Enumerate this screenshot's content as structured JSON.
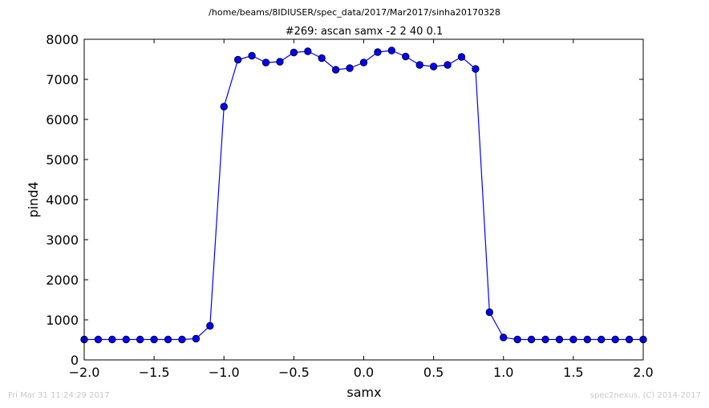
{
  "header": {
    "suptitle": "/home/beams/8IDIUSER/spec_data/2017/Mar2017/sinha20170328"
  },
  "footer": {
    "timestamp": "Fri Mar 31 11:24:29 2017",
    "credit": "spec2nexus, (C) 2014-2017"
  },
  "chart_data": {
    "type": "line",
    "title": "#269: ascan  samx -2 2  40 0.1",
    "xlabel": "samx",
    "ylabel": "pind4",
    "xlim": [
      -2.0,
      2.0
    ],
    "ylim": [
      0,
      8000
    ],
    "xticks": [
      "−2.0",
      "−1.5",
      "−1.0",
      "−0.5",
      "0.0",
      "0.5",
      "1.0",
      "1.5",
      "2.0"
    ],
    "yticks": [
      "0",
      "1000",
      "2000",
      "3000",
      "4000",
      "5000",
      "6000",
      "7000",
      "8000"
    ],
    "line_color": "#0000ff",
    "marker": "circle",
    "grid": false,
    "x": [
      -2.0,
      -1.9,
      -1.8,
      -1.7,
      -1.6,
      -1.5,
      -1.4,
      -1.3,
      -1.2,
      -1.1,
      -1.0,
      -0.9,
      -0.8,
      -0.7,
      -0.6,
      -0.5,
      -0.4,
      -0.3,
      -0.2,
      -0.1,
      0.0,
      0.1,
      0.2,
      0.3,
      0.4,
      0.5,
      0.6,
      0.7,
      0.8,
      0.9,
      1.0,
      1.1,
      1.2,
      1.3,
      1.4,
      1.5,
      1.6,
      1.7,
      1.8,
      1.9,
      2.0
    ],
    "y": [
      510,
      510,
      510,
      510,
      510,
      510,
      510,
      510,
      530,
      850,
      6320,
      7490,
      7590,
      7420,
      7440,
      7670,
      7700,
      7530,
      7240,
      7280,
      7420,
      7680,
      7720,
      7570,
      7360,
      7320,
      7360,
      7560,
      7260,
      1190,
      560,
      510,
      510,
      510,
      510,
      510,
      510,
      510,
      510,
      510,
      510
    ]
  }
}
